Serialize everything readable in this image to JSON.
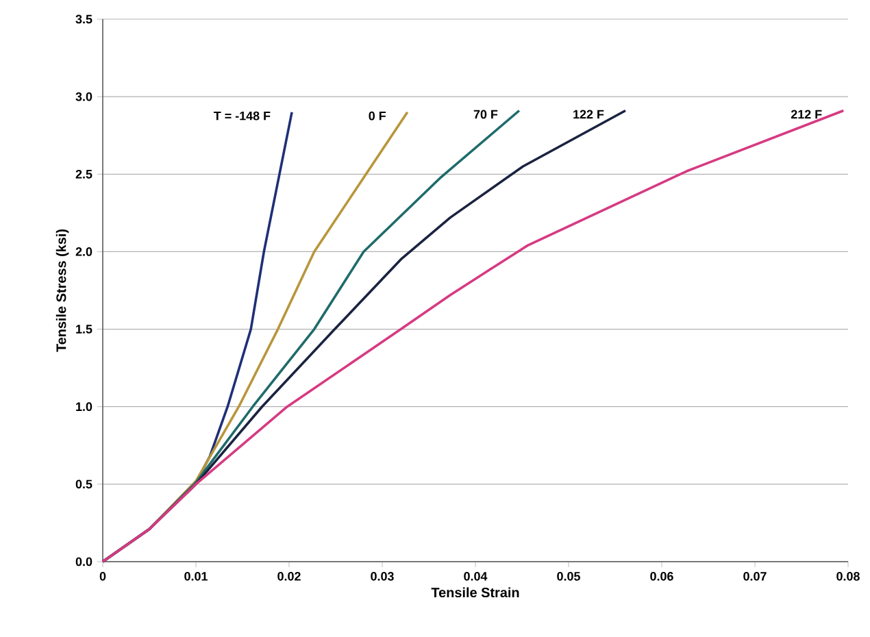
{
  "chart_data": {
    "type": "line",
    "xlabel": "Tensile Strain",
    "ylabel": "Tensile Stress (ksi)",
    "xlim": [
      0,
      0.08
    ],
    "ylim": [
      0,
      3.5
    ],
    "xticks": [
      0,
      0.01,
      0.02,
      0.03,
      0.04,
      0.05,
      0.06,
      0.07,
      0.08
    ],
    "yticks": [
      {
        "value": 0,
        "label": "0.0"
      },
      {
        "value": 0.5,
        "label": "0.5"
      },
      {
        "value": 1,
        "label": "1.0"
      },
      {
        "value": 1.5,
        "label": "1.5"
      },
      {
        "value": 2,
        "label": "2.0"
      },
      {
        "value": 2.5,
        "label": "2.5"
      },
      {
        "value": 3,
        "label": "3.0"
      },
      {
        "value": 3.5,
        "label": "3.5"
      }
    ],
    "grid": "y",
    "marker": "none",
    "line_style": "solid",
    "series": [
      {
        "name": "T = -148 F",
        "color": "#1f2f78",
        "x": [
          0,
          0.005,
          0.01,
          0.0115,
          0.0134,
          0.0159,
          0.0173,
          0.0203
        ],
        "values": [
          0,
          0.21,
          0.51,
          0.68,
          1.0,
          1.5,
          2.0,
          2.9
        ]
      },
      {
        "name": "0 F",
        "color": "#b8963c",
        "x": [
          0,
          0.005,
          0.01,
          0.0146,
          0.0188,
          0.0227,
          0.0327
        ],
        "values": [
          0,
          0.21,
          0.52,
          1.0,
          1.5,
          2.0,
          2.9
        ]
      },
      {
        "name": "70 F",
        "color": "#1f6b6b",
        "x": [
          0,
          0.005,
          0.01,
          0.0161,
          0.0227,
          0.028,
          0.0363,
          0.0447
        ],
        "values": [
          0,
          0.21,
          0.51,
          1.0,
          1.5,
          2.0,
          2.48,
          2.91
        ]
      },
      {
        "name": "122 F",
        "color": "#1a2340",
        "x": [
          0,
          0.005,
          0.01,
          0.0171,
          0.0249,
          0.032,
          0.0373,
          0.0451,
          0.0561
        ],
        "values": [
          0,
          0.21,
          0.5,
          1.0,
          1.5,
          1.95,
          2.22,
          2.55,
          2.91
        ]
      },
      {
        "name": "212 F",
        "color": "#d63a82",
        "x": [
          0,
          0.005,
          0.01,
          0.0198,
          0.032,
          0.0373,
          0.0417,
          0.0456,
          0.0627,
          0.0795
        ],
        "values": [
          0,
          0.21,
          0.5,
          1.0,
          1.5,
          1.72,
          1.89,
          2.04,
          2.52,
          2.91
        ]
      }
    ]
  }
}
